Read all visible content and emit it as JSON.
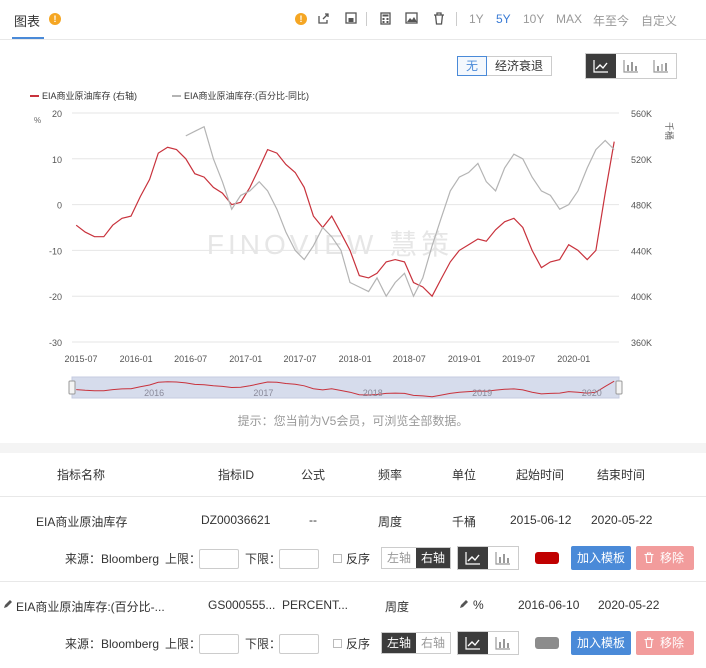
{
  "toolbar": {
    "title": "图表",
    "ranges": [
      "1Y",
      "5Y",
      "10Y",
      "MAX",
      "年至今",
      "自定义"
    ],
    "active_range": "5Y",
    "icons": [
      "warning-icon",
      "share-icon",
      "save-icon",
      "calculator-icon",
      "image-icon",
      "trash-icon"
    ]
  },
  "recession": {
    "none_label": "无",
    "recession_label": "经济衰退"
  },
  "chart_data": {
    "type": "line",
    "watermark": "FINOVIEW 慧策",
    "series": [
      {
        "name": "EIA商业原油库存 (右轴)",
        "axis": "right",
        "color": "#c8323c",
        "dates": [
          "2015-06",
          "2015-07",
          "2015-08",
          "2015-09",
          "2015-10",
          "2015-11",
          "2015-12",
          "2016-01",
          "2016-02",
          "2016-03",
          "2016-04",
          "2016-05",
          "2016-06",
          "2016-07",
          "2016-08",
          "2016-09",
          "2016-10",
          "2016-11",
          "2016-12",
          "2017-01",
          "2017-02",
          "2017-03",
          "2017-04",
          "2017-05",
          "2017-06",
          "2017-07",
          "2017-08",
          "2017-09",
          "2017-10",
          "2017-11",
          "2017-12",
          "2018-01",
          "2018-02",
          "2018-03",
          "2018-04",
          "2018-05",
          "2018-06",
          "2018-07",
          "2018-08",
          "2018-09",
          "2018-10",
          "2018-11",
          "2018-12",
          "2019-01",
          "2019-02",
          "2019-03",
          "2019-04",
          "2019-05",
          "2019-06",
          "2019-07",
          "2019-08",
          "2019-09",
          "2019-10",
          "2019-11",
          "2019-12",
          "2020-01",
          "2020-02",
          "2020-03",
          "2020-04",
          "2020-05"
        ],
        "values": [
          462,
          456,
          452,
          452,
          462,
          468,
          470,
          487,
          502,
          525,
          530,
          528,
          520,
          507,
          504,
          495,
          490,
          480,
          482,
          495,
          512,
          528,
          525,
          515,
          508,
          495,
          470,
          460,
          470,
          455,
          440,
          418,
          416,
          420,
          430,
          432,
          430,
          412,
          408,
          400,
          415,
          430,
          440,
          445,
          450,
          448,
          458,
          465,
          468,
          460,
          440,
          425,
          430,
          432,
          445,
          440,
          432,
          440,
          490,
          535
        ]
      },
      {
        "name": "EIA商业原油库存:(百分比-同比)",
        "axis": "left",
        "color": "#b4b4b4",
        "dates": [
          "2016-06",
          "2016-07",
          "2016-08",
          "2016-09",
          "2016-10",
          "2016-11",
          "2016-12",
          "2017-01",
          "2017-02",
          "2017-03",
          "2017-04",
          "2017-05",
          "2017-06",
          "2017-07",
          "2017-08",
          "2017-09",
          "2017-10",
          "2017-11",
          "2017-12",
          "2018-01",
          "2018-02",
          "2018-03",
          "2018-04",
          "2018-05",
          "2018-06",
          "2018-07",
          "2018-08",
          "2018-09",
          "2018-10",
          "2018-11",
          "2018-12",
          "2019-01",
          "2019-02",
          "2019-03",
          "2019-04",
          "2019-05",
          "2019-06",
          "2019-07",
          "2019-08",
          "2019-09",
          "2019-10",
          "2019-11",
          "2019-12",
          "2020-01",
          "2020-02",
          "2020-03",
          "2020-04",
          "2020-05"
        ],
        "values": [
          15,
          16,
          17,
          10,
          5,
          -1,
          2,
          3,
          5,
          3,
          -1,
          -6,
          -10,
          -12,
          -9,
          -5,
          -7,
          -10,
          -17,
          -18,
          -19,
          -16,
          -20,
          -17,
          -15,
          -20,
          -16,
          -9,
          -3,
          3,
          6,
          7,
          9,
          5,
          3,
          8,
          11,
          10,
          6,
          3,
          2,
          -1,
          0,
          3,
          8,
          12,
          14,
          12
        ]
      }
    ],
    "left_axis": {
      "unit": "%",
      "ticks": [
        20,
        10,
        0,
        -10,
        -20,
        -30
      ]
    },
    "right_axis": {
      "unit": "千桶",
      "ticks": [
        "560K",
        "520K",
        "480K",
        "440K",
        "400K",
        "360K"
      ]
    },
    "x_ticks": [
      "2015-07",
      "2016-01",
      "2016-07",
      "2017-01",
      "2017-07",
      "2018-01",
      "2018-07",
      "2019-01",
      "2019-07",
      "2020-01"
    ],
    "navigator_labels": [
      "2016",
      "2017",
      "2018",
      "2019",
      "2020"
    ]
  },
  "hint": "提示：您当前为V5会员，可浏览全部数据。",
  "table": {
    "headers": [
      "指标名称",
      "指标ID",
      "公式",
      "频率",
      "单位",
      "起始时间",
      "结束时间"
    ],
    "rows": [
      {
        "name": "EIA商业原油库存",
        "id": "DZ00036621",
        "formula": "--",
        "freq": "周度",
        "unit": "千桶",
        "start": "2015-06-12",
        "end": "2020-05-22",
        "source": "来源：Bloomberg",
        "upper_label": "上限：",
        "lower_label": "下限：",
        "reverse_label": "反序",
        "left_axis_label": "左轴",
        "right_axis_label": "右轴",
        "active_axis": "right",
        "color": "#c00000",
        "add_label": "加入模板",
        "remove_label": "移除"
      },
      {
        "name": "EIA商业原油库存:(百分比-...",
        "id": "GS000555...",
        "formula": "PERCENT...",
        "freq": "周度",
        "unit": "%",
        "start": "2016-06-10",
        "end": "2020-05-22",
        "source": "来源：Bloomberg",
        "upper_label": "上限：",
        "lower_label": "下限：",
        "reverse_label": "反序",
        "left_axis_label": "左轴",
        "right_axis_label": "右轴",
        "active_axis": "left",
        "color": "#8c8c8c",
        "add_label": "加入模板",
        "remove_label": "移除"
      }
    ]
  }
}
